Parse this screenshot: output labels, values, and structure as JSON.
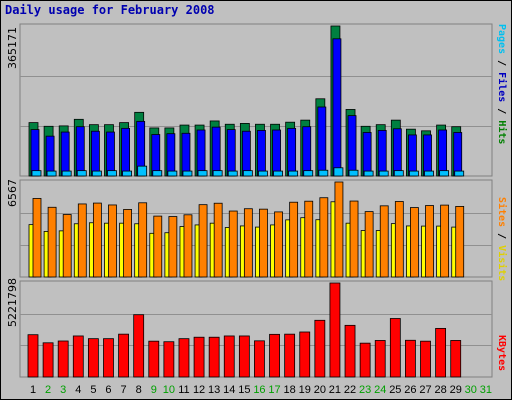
{
  "title": "Daily usage for February 2008",
  "labels": {
    "top_scale": "365171",
    "mid_scale": "6567",
    "bot_scale": "5221798",
    "right_top": [
      {
        "text": "Pages",
        "color": "#00c0f0"
      },
      {
        "text": " / ",
        "color": "#000000"
      },
      {
        "text": "Files",
        "color": "#0000c0"
      },
      {
        "text": " / ",
        "color": "#000000"
      },
      {
        "text": "Hits",
        "color": "#008000"
      }
    ],
    "right_mid": [
      {
        "text": "Sites",
        "color": "#ff8000"
      },
      {
        "text": " / ",
        "color": "#000000"
      },
      {
        "text": "Visits",
        "color": "#e0d000"
      }
    ],
    "right_bot": [
      {
        "text": "KBytes",
        "color": "#ff0000"
      }
    ]
  },
  "chart_data": {
    "type": "bar",
    "title": "Daily usage for February 2008",
    "days": [
      "1",
      "2",
      "3",
      "4",
      "5",
      "6",
      "7",
      "8",
      "9",
      "10",
      "11",
      "12",
      "13",
      "14",
      "15",
      "16",
      "17",
      "18",
      "19",
      "20",
      "21",
      "22",
      "23",
      "24",
      "25",
      "26",
      "27",
      "28",
      "29",
      "30",
      "31"
    ],
    "weekend_days": [
      "2",
      "3",
      "9",
      "10",
      "16",
      "17",
      "23",
      "24",
      "30",
      "31"
    ],
    "panels": {
      "hits_files_pages": {
        "ymax": 365171,
        "series": [
          {
            "name": "Hits",
            "color": "#008040",
            "values": [
              130000,
              121000,
              122000,
              138000,
              125000,
              125000,
              130000,
              155000,
              117000,
              117000,
              124000,
              124000,
              134000,
              126000,
              128000,
              126000,
              126000,
              131000,
              136000,
              188000,
              365171,
              162000,
              121000,
              125000,
              136000,
              114000,
              110000,
              124000,
              120000,
              0,
              0
            ]
          },
          {
            "name": "Files",
            "color": "#0000ff",
            "values": [
              113000,
              97000,
              107000,
              120000,
              109000,
              107000,
              116000,
              133000,
              101000,
              103000,
              104000,
              112000,
              119000,
              113000,
              109000,
              111000,
              112000,
              116000,
              120000,
              168000,
              334000,
              147000,
              106000,
              111000,
              115000,
              100000,
              100000,
              112000,
              106000,
              0,
              0
            ]
          },
          {
            "name": "Pages",
            "color": "#00c0ff",
            "values": [
              13000,
              12000,
              12000,
              13000,
              12000,
              13000,
              12000,
              24000,
              13000,
              12000,
              12000,
              13000,
              13000,
              12000,
              13000,
              12000,
              12000,
              12000,
              13000,
              14000,
              20000,
              14000,
              12000,
              12000,
              13000,
              12000,
              12000,
              13000,
              12000,
              0,
              0
            ]
          }
        ]
      },
      "sites_visits": {
        "ymax": 6567,
        "series": [
          {
            "name": "Sites",
            "color": "#ff8000",
            "values": [
              5430,
              4820,
              4320,
              5050,
              5110,
              4980,
              4670,
              5130,
              4210,
              4180,
              4300,
              5000,
              5100,
              4560,
              4720,
              4690,
              4500,
              5170,
              5240,
              5480,
              6567,
              5250,
              4520,
              4920,
              5220,
              4800,
              4940,
              4970,
              4880,
              0,
              0
            ]
          },
          {
            "name": "Visits",
            "color": "#ffff00",
            "values": [
              3620,
              3150,
              3190,
              3680,
              3750,
              3720,
              3720,
              3680,
              3020,
              3060,
              3490,
              3600,
              3720,
              3420,
              3530,
              3450,
              3600,
              3950,
              4100,
              3960,
              5200,
              3720,
              3210,
              3210,
              3690,
              3530,
              3520,
              3520,
              3450,
              0,
              0
            ]
          }
        ]
      },
      "kbytes": {
        "ymax": 5221798,
        "series": [
          {
            "name": "KBytes",
            "color": "#ff0000",
            "values": [
              2350000,
              1900000,
              2000000,
              2280000,
              2130000,
              2130000,
              2380000,
              3460000,
              1990000,
              1960000,
              2130000,
              2210000,
              2210000,
              2280000,
              2280000,
              2010000,
              2370000,
              2380000,
              2500000,
              3150000,
              5221798,
              2870000,
              1880000,
              2030000,
              3250000,
              2040000,
              1990000,
              2700000,
              2030000,
              0,
              0
            ]
          }
        ]
      }
    }
  }
}
